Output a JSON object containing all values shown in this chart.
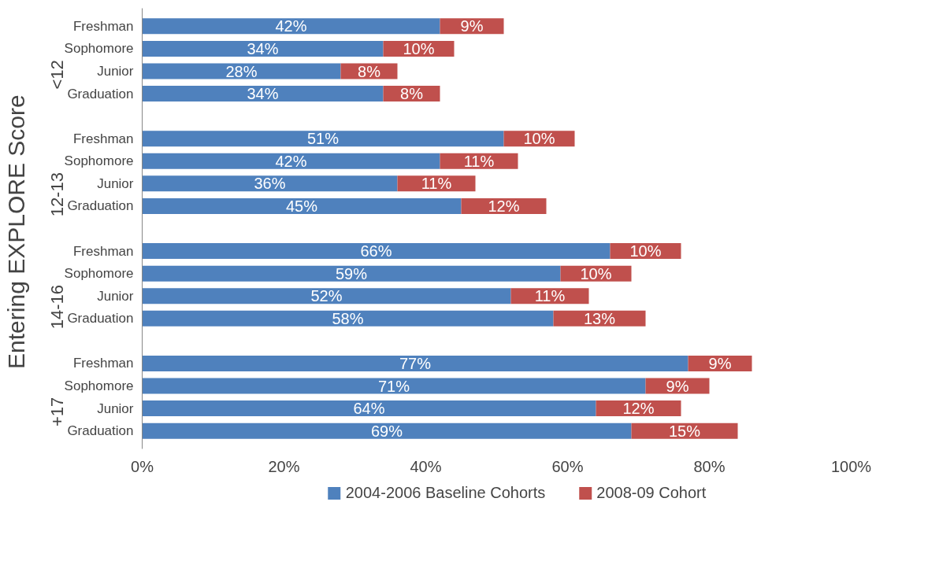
{
  "chart_data": {
    "type": "bar",
    "orientation": "horizontal",
    "stacked": true,
    "ylabel": "Entering EXPLORE  Score",
    "categories": [
      "Freshman",
      "Sophomore",
      "Junior",
      "Graduation",
      null,
      "Freshman",
      "Sophomore",
      "Junior",
      "Graduation",
      null,
      "Freshman",
      "Sophomore",
      "Junior",
      "Graduation",
      null,
      "Freshman",
      "Sophomore",
      "Junior",
      "Graduation"
    ],
    "annotations": [
      "<12",
      "12-13",
      "14-16",
      "+17"
    ],
    "series": [
      {
        "name": "2004-2006 Baseline Cohorts",
        "color": "#4f81bd",
        "values": [
          42,
          34,
          28,
          34,
          null,
          51,
          42,
          36,
          45,
          null,
          66,
          59,
          52,
          58,
          null,
          77,
          71,
          64,
          69
        ],
        "value_labels": [
          "42%",
          "34%",
          "28%",
          "34%",
          null,
          "51%",
          "42%",
          "36%",
          "45%",
          null,
          "66%",
          "59%",
          "52%",
          "58%",
          null,
          "77%",
          "71%",
          "64%",
          "69%"
        ]
      },
      {
        "name": "2008-09 Cohort",
        "color": "#c0504d",
        "values": [
          9,
          10,
          8,
          8,
          null,
          10,
          11,
          11,
          12,
          null,
          10,
          10,
          11,
          13,
          null,
          9,
          9,
          12,
          15
        ],
        "value_labels": [
          "9%",
          "10%",
          "8%",
          "8%",
          null,
          "10%",
          "11%",
          "11%",
          "12%",
          null,
          "10%",
          "10%",
          "11%",
          "13%",
          null,
          "9%",
          "9%",
          "12%",
          "15%"
        ]
      }
    ],
    "xlim": [
      0,
      100
    ],
    "xticks": [
      {
        "value": 0,
        "label": "0%"
      },
      {
        "value": 20,
        "label": "20%"
      },
      {
        "value": 40,
        "label": "40%"
      },
      {
        "value": 60,
        "label": "60%"
      },
      {
        "value": 80,
        "label": "80%"
      },
      {
        "value": 100,
        "label": "100%"
      }
    ],
    "grid": false,
    "legend": "bottom"
  }
}
